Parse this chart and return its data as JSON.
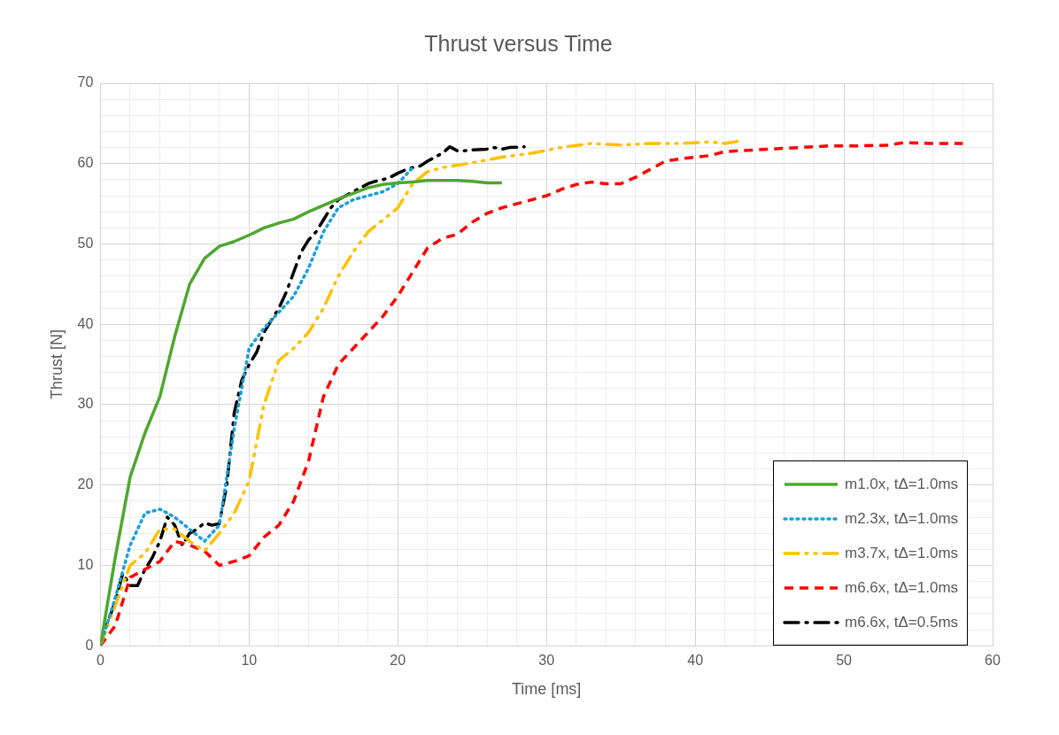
{
  "chart_data": {
    "type": "line",
    "title": "Thrust versus Time",
    "xlabel": "Time [ms]",
    "ylabel": "Thrust [N]",
    "xlim": [
      0,
      60
    ],
    "ylim": [
      0,
      70
    ],
    "xticks": [
      0,
      {
        "value": 2,
        "label": null
      },
      {
        "value": 4,
        "label": null
      },
      {
        "value": 6,
        "label": null
      },
      {
        "value": 8,
        "label": null
      },
      10,
      {
        "value": 12,
        "label": null
      },
      {
        "value": 14,
        "label": null
      },
      {
        "value": 16,
        "label": null
      },
      {
        "value": 18,
        "label": null
      },
      20,
      {
        "value": 22,
        "label": null
      },
      {
        "value": 24,
        "label": null
      },
      {
        "value": 26,
        "label": null
      },
      {
        "value": 28,
        "label": null
      },
      30,
      {
        "value": 32,
        "label": null
      },
      {
        "value": 34,
        "label": null
      },
      {
        "value": 36,
        "label": null
      },
      {
        "value": 38,
        "label": null
      },
      40,
      {
        "value": 42,
        "label": null
      },
      {
        "value": 44,
        "label": null
      },
      {
        "value": 46,
        "label": null
      },
      {
        "value": 48,
        "label": null
      },
      50,
      {
        "value": 52,
        "label": null
      },
      {
        "value": 54,
        "label": null
      },
      {
        "value": 56,
        "label": null
      },
      {
        "value": 58,
        "label": null
      },
      60
    ],
    "yticks": [
      0,
      {
        "value": 2,
        "label": null
      },
      {
        "value": 4,
        "label": null
      },
      {
        "value": 6,
        "label": null
      },
      {
        "value": 8,
        "label": null
      },
      10,
      {
        "value": 12,
        "label": null
      },
      {
        "value": 14,
        "label": null
      },
      {
        "value": 16,
        "label": null
      },
      {
        "value": 18,
        "label": null
      },
      20,
      {
        "value": 22,
        "label": null
      },
      {
        "value": 24,
        "label": null
      },
      {
        "value": 26,
        "label": null
      },
      {
        "value": 28,
        "label": null
      },
      30,
      {
        "value": 32,
        "label": null
      },
      {
        "value": 34,
        "label": null
      },
      {
        "value": 36,
        "label": null
      },
      {
        "value": 38,
        "label": null
      },
      40,
      {
        "value": 42,
        "label": null
      },
      {
        "value": 44,
        "label": null
      },
      {
        "value": 46,
        "label": null
      },
      {
        "value": 48,
        "label": null
      },
      50,
      {
        "value": 52,
        "label": null
      },
      {
        "value": 54,
        "label": null
      },
      {
        "value": 56,
        "label": null
      },
      {
        "value": 58,
        "label": null
      },
      60,
      {
        "value": 62,
        "label": null
      },
      {
        "value": 64,
        "label": null
      },
      {
        "value": 66,
        "label": null
      },
      {
        "value": 68,
        "label": null
      },
      70
    ],
    "grid": true,
    "legend": "bottom right",
    "marker": "none",
    "series": [
      {
        "name": "m1.0x, tΔ=1.0ms",
        "color": "#4ea72e",
        "line_style": "solid",
        "x": [
          0,
          1,
          2,
          3,
          4,
          5,
          6,
          7,
          8,
          9,
          10,
          11,
          12,
          13,
          14,
          15,
          16,
          17,
          18,
          19,
          20,
          21,
          22,
          23,
          24,
          25,
          26,
          27
        ],
        "values": [
          0,
          11,
          21,
          26.5,
          31,
          38.5,
          45,
          48.2,
          49.7,
          50.3,
          51.1,
          52,
          52.6,
          53.1,
          54,
          54.8,
          55.6,
          56.3,
          57,
          57.4,
          57.6,
          57.7,
          57.9,
          57.9,
          57.9,
          57.8,
          57.6,
          57.6
        ]
      },
      {
        "name": "m2.3x, tΔ=1.0ms",
        "color": "#1a9fd8",
        "line_style": "dotted",
        "x": [
          0,
          1,
          2,
          3,
          4,
          5,
          6,
          7,
          8,
          9,
          10,
          11,
          12,
          13,
          14,
          15,
          16,
          17,
          18,
          19,
          20,
          21
        ],
        "values": [
          0,
          6,
          12.5,
          16.5,
          17,
          16,
          14.5,
          13,
          15,
          27,
          37,
          39.5,
          41.5,
          43.5,
          47,
          51.5,
          54.5,
          55.5,
          56,
          56.5,
          57.5,
          59.5
        ]
      },
      {
        "name": "m3.7x, tΔ=1.0ms",
        "color": "#ffc000",
        "line_style": "dashdotdot",
        "x": [
          0,
          1,
          2,
          3,
          4,
          5,
          6,
          7,
          8,
          9,
          10,
          11,
          12,
          13,
          14,
          15,
          16,
          17,
          18,
          19,
          20,
          21,
          22,
          23,
          24,
          25,
          27,
          29,
          31,
          33,
          35,
          37,
          39,
          41,
          42,
          43
        ],
        "values": [
          0,
          5,
          10,
          11.5,
          14.5,
          14.5,
          13,
          11.8,
          14,
          16.5,
          20.5,
          30,
          35.5,
          37,
          39,
          42,
          46,
          49,
          51.5,
          53,
          54.5,
          57.5,
          59,
          59.5,
          59.8,
          60.1,
          60.8,
          61.3,
          62,
          62.5,
          62.3,
          62.5,
          62.5,
          62.7,
          62.5,
          62.8
        ]
      },
      {
        "name": "m6.6x, tΔ=1.0ms",
        "color": "#ff0000",
        "line_style": "dashed",
        "x": [
          0,
          1,
          2,
          3,
          4,
          5,
          6,
          7,
          8,
          9,
          10,
          11,
          12,
          13,
          14,
          15,
          16,
          17,
          18,
          19,
          20,
          21,
          22,
          23,
          24,
          25,
          26,
          27,
          28,
          29,
          30,
          31,
          32,
          33,
          34,
          35,
          36,
          37,
          38,
          39,
          40,
          41,
          42,
          43,
          45,
          47,
          49,
          51,
          53,
          54,
          56,
          58
        ],
        "values": [
          0,
          2.5,
          8.5,
          9.5,
          10.5,
          13,
          12.5,
          11.8,
          10,
          10.5,
          11.2,
          13.5,
          15,
          18,
          23,
          31,
          35,
          37,
          39,
          41,
          43.5,
          46.5,
          49.5,
          50.7,
          51.2,
          52.7,
          53.8,
          54.5,
          55,
          55.5,
          56,
          56.8,
          57.4,
          57.7,
          57.5,
          57.5,
          58.3,
          59.3,
          60.3,
          60.6,
          60.8,
          61,
          61.5,
          61.6,
          61.8,
          62,
          62.2,
          62.2,
          62.3,
          62.6,
          62.5,
          62.5
        ]
      },
      {
        "name": "m6.6x, tΔ=0.5ms",
        "color": "#000000",
        "line_style": "dashdot",
        "x": [
          0,
          0.5,
          1,
          1.5,
          2,
          2.5,
          3,
          3.5,
          4,
          4.5,
          5,
          5.5,
          6,
          6.5,
          7,
          7.5,
          8,
          8.5,
          9,
          9.5,
          10,
          10.5,
          11,
          11.5,
          12,
          12.5,
          13,
          13.5,
          14,
          14.5,
          15,
          15.5,
          16,
          16.5,
          17,
          17.5,
          18,
          18.5,
          19,
          19.5,
          20,
          20.5,
          21,
          21.5,
          22,
          22.5,
          23,
          23.5,
          24,
          24.5,
          25,
          26,
          26.5,
          27,
          27.5,
          28.5
        ],
        "values": [
          0,
          3,
          5.5,
          9,
          7.5,
          7.5,
          9.5,
          11,
          13,
          16,
          15,
          12.5,
          14,
          14.5,
          15.3,
          15,
          15.2,
          20,
          29,
          33,
          35,
          36.5,
          39,
          40.5,
          42,
          44,
          46.5,
          49,
          50.5,
          51.5,
          53,
          54.5,
          55.5,
          56,
          56.5,
          57,
          57.5,
          57.8,
          58,
          58.3,
          58.8,
          59.2,
          59.5,
          59.7,
          60.3,
          60.8,
          61.3,
          62.1,
          61.6,
          61.6,
          61.7,
          61.8,
          62,
          61.8,
          62,
          62.1
        ]
      }
    ]
  }
}
